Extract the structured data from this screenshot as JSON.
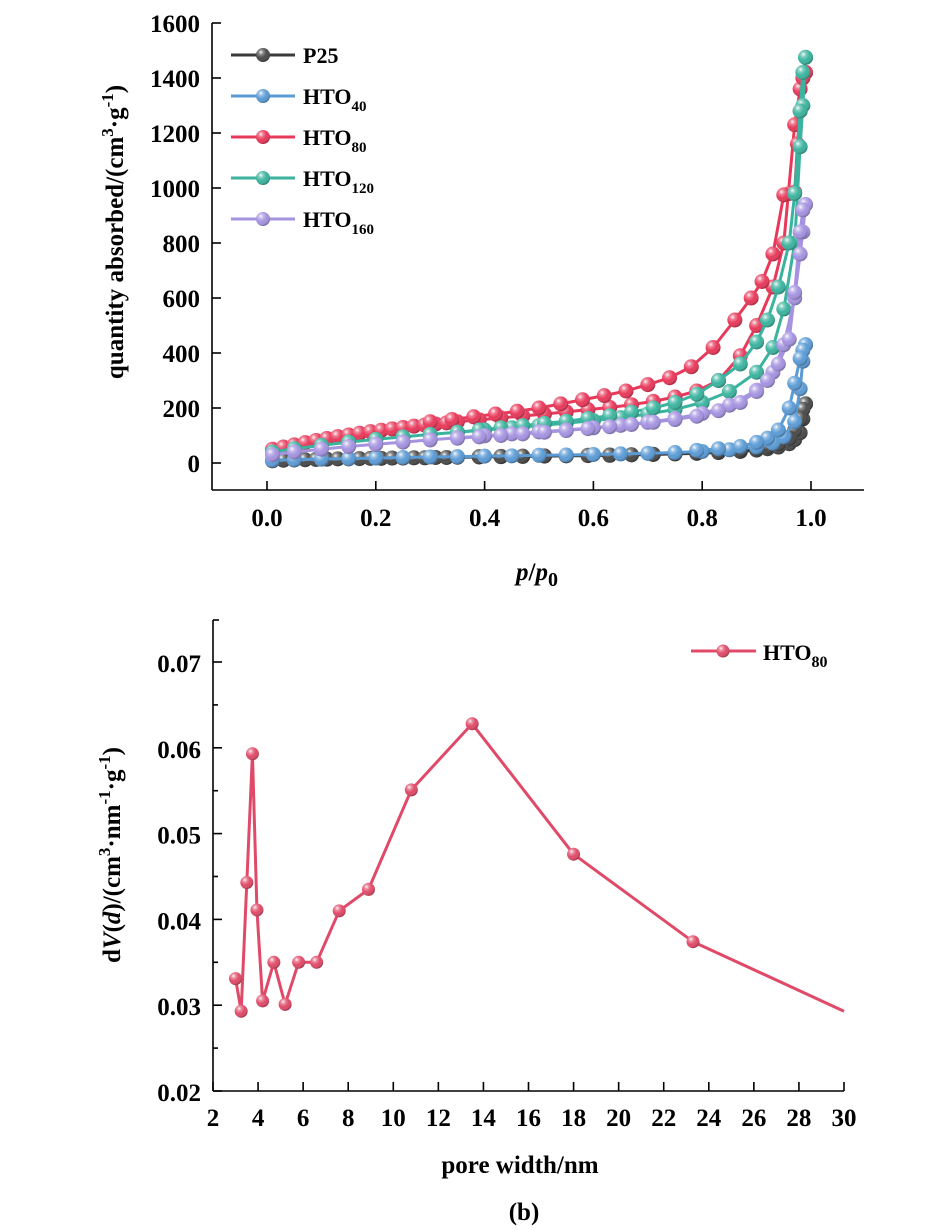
{
  "chart_data": [
    {
      "type": "line",
      "panel": "a",
      "title": "",
      "xlabel": "p/p0",
      "xlabel_parts": {
        "p": "p",
        "slash": "/",
        "p0_base": "p",
        "p0_sub": "0"
      },
      "ylabel": "quantity absorbed/(cm3·g-1)",
      "ylabel_parts": {
        "main": "quantity absorbed/(cm",
        "sup1": "3",
        "mid": "·g",
        "sup2": "-1",
        "end": ")"
      },
      "xlim": [
        -0.1,
        1.1
      ],
      "ylim": [
        -100,
        1600
      ],
      "xticks": [
        0.0,
        0.2,
        0.4,
        0.6,
        0.8,
        1.0
      ],
      "xtick_labels": [
        "0.0",
        "0.2",
        "0.4",
        "0.6",
        "0.8",
        "1.0"
      ],
      "yticks": [
        0,
        200,
        400,
        600,
        800,
        1000,
        1200,
        1400,
        1600
      ],
      "ytick_labels": [
        "0",
        "200",
        "400",
        "600",
        "800",
        "1000",
        "1200",
        "1400",
        "1600"
      ],
      "grid": false,
      "legend_position": "top-left",
      "series": [
        {
          "name": "P25",
          "legend_base": "P25",
          "legend_sub": "",
          "color": "#3a3a3a",
          "marker_color": "#4a4a4a",
          "adsorption": {
            "x": [
              0.01,
              0.03,
              0.05,
              0.07,
              0.09,
              0.11,
              0.13,
              0.15,
              0.17,
              0.19,
              0.21,
              0.23,
              0.25,
              0.27,
              0.29,
              0.31,
              0.33,
              0.35,
              0.39,
              0.43,
              0.47,
              0.51,
              0.55,
              0.59,
              0.63,
              0.67,
              0.71,
              0.75,
              0.79,
              0.83,
              0.87,
              0.9,
              0.92,
              0.94,
              0.96,
              0.97,
              0.98,
              0.985,
              0.99
            ],
            "y": [
              8,
              10,
              11,
              12,
              13,
              14,
              15,
              15,
              16,
              17,
              17,
              18,
              18,
              19,
              19,
              20,
              20,
              21,
              22,
              23,
              24,
              25,
              26,
              27,
              28,
              30,
              31,
              33,
              35,
              38,
              42,
              47,
              52,
              58,
              70,
              85,
              110,
              160,
              215
            ]
          },
          "desorption": {
            "x": [
              0.99,
              0.985,
              0.98,
              0.97,
              0.96,
              0.94,
              0.92,
              0.9,
              0.87,
              0.83,
              0.79,
              0.75,
              0.71,
              0.67,
              0.63,
              0.59,
              0.55,
              0.51,
              0.47,
              0.43,
              0.39,
              0.35
            ],
            "y": [
              215,
              195,
              160,
              120,
              90,
              70,
              60,
              54,
              48,
              42,
              38,
              35,
              32,
              30,
              29,
              28,
              27,
              26,
              25,
              24,
              23,
              22
            ]
          }
        },
        {
          "name": "HTO40",
          "legend_base": "HTO",
          "legend_sub": "40",
          "color": "#5b9bd5",
          "marker_color": "#5b9bd5",
          "adsorption": {
            "x": [
              0.01,
              0.05,
              0.1,
              0.15,
              0.2,
              0.25,
              0.3,
              0.35,
              0.4,
              0.45,
              0.5,
              0.55,
              0.6,
              0.65,
              0.7,
              0.75,
              0.8,
              0.85,
              0.9,
              0.93,
              0.95,
              0.97,
              0.98,
              0.985,
              0.99
            ],
            "y": [
              10,
              12,
              14,
              16,
              18,
              20,
              22,
              23,
              25,
              26,
              28,
              29,
              31,
              33,
              35,
              38,
              42,
              48,
              58,
              72,
              95,
              150,
              270,
              370,
              430
            ]
          },
          "desorption": {
            "x": [
              0.99,
              0.985,
              0.98,
              0.97,
              0.96,
              0.94,
              0.92,
              0.9,
              0.87,
              0.83,
              0.79
            ],
            "y": [
              430,
              410,
              380,
              290,
              200,
              120,
              90,
              75,
              60,
              52,
              46
            ]
          }
        },
        {
          "name": "HTO80",
          "legend_base": "HTO",
          "legend_sub": "80",
          "color": "#e8395a",
          "marker_color": "#e8395a",
          "adsorption": {
            "x": [
              0.01,
              0.03,
              0.05,
              0.07,
              0.09,
              0.11,
              0.13,
              0.15,
              0.17,
              0.19,
              0.21,
              0.23,
              0.25,
              0.27,
              0.29,
              0.31,
              0.33,
              0.35,
              0.39,
              0.43,
              0.47,
              0.51,
              0.55,
              0.59,
              0.63,
              0.67,
              0.71,
              0.75,
              0.79,
              0.83,
              0.87,
              0.9,
              0.93,
              0.95,
              0.97,
              0.98,
              0.99
            ],
            "y": [
              50,
              58,
              66,
              74,
              82,
              89,
              96,
              102,
              108,
              114,
              119,
              124,
              129,
              134,
              138,
              142,
              146,
              150,
              157,
              164,
              171,
              178,
              186,
              194,
              202,
              212,
              224,
              240,
              262,
              300,
              390,
              500,
              640,
              800,
              1230,
              1360,
              1420
            ]
          },
          "desorption": {
            "x": [
              0.99,
              0.985,
              0.98,
              0.975,
              0.97,
              0.96,
              0.95,
              0.93,
              0.91,
              0.89,
              0.86,
              0.82,
              0.78,
              0.74,
              0.7,
              0.66,
              0.62,
              0.58,
              0.54,
              0.5,
              0.46,
              0.42,
              0.38,
              0.34,
              0.3
            ],
            "y": [
              1420,
              1400,
              1280,
              1160,
              985,
              980,
              975,
              760,
              660,
              600,
              520,
              420,
              350,
              310,
              285,
              262,
              245,
              230,
              215,
              200,
              188,
              178,
              168,
              158,
              150
            ]
          }
        },
        {
          "name": "HTO120",
          "legend_base": "HTO",
          "legend_sub": "120",
          "color": "#3bb39e",
          "marker_color": "#3bb39e",
          "adsorption": {
            "x": [
              0.01,
              0.05,
              0.1,
              0.15,
              0.2,
              0.25,
              0.3,
              0.35,
              0.4,
              0.45,
              0.5,
              0.55,
              0.6,
              0.65,
              0.7,
              0.75,
              0.8,
              0.85,
              0.9,
              0.93,
              0.95,
              0.97,
              0.98,
              0.985,
              0.99
            ],
            "y": [
              40,
              52,
              64,
              76,
              86,
              95,
              104,
              112,
              120,
              128,
              136,
              145,
              154,
              165,
              178,
              195,
              220,
              260,
              330,
              420,
              560,
              800,
              1150,
              1300,
              1475
            ]
          },
          "desorption": {
            "x": [
              0.99,
              0.985,
              0.98,
              0.97,
              0.96,
              0.94,
              0.92,
              0.9,
              0.87,
              0.83,
              0.79,
              0.75,
              0.71,
              0.67,
              0.63,
              0.59,
              0.55,
              0.51,
              0.47,
              0.43,
              0.39,
              0.35
            ],
            "y": [
              1475,
              1420,
              1280,
              980,
              800,
              640,
              520,
              440,
              360,
              300,
              250,
              220,
              200,
              185,
              172,
              162,
              152,
              144,
              136,
              128,
              120,
              112
            ]
          }
        },
        {
          "name": "HTO160",
          "legend_base": "HTO",
          "legend_sub": "160",
          "color": "#a593e0",
          "marker_color": "#a593e0",
          "adsorption": {
            "x": [
              0.01,
              0.05,
              0.1,
              0.15,
              0.2,
              0.25,
              0.3,
              0.35,
              0.4,
              0.45,
              0.5,
              0.55,
              0.6,
              0.65,
              0.7,
              0.75,
              0.8,
              0.85,
              0.9,
              0.93,
              0.95,
              0.97,
              0.98,
              0.985,
              0.99
            ],
            "y": [
              30,
              40,
              50,
              60,
              68,
              76,
              84,
              92,
              99,
              106,
              113,
              120,
              128,
              137,
              148,
              162,
              180,
              210,
              265,
              330,
              430,
              600,
              760,
              840,
              940
            ]
          },
          "desorption": {
            "x": [
              0.99,
              0.985,
              0.98,
              0.97,
              0.96,
              0.94,
              0.92,
              0.9,
              0.87,
              0.83,
              0.79,
              0.75,
              0.71,
              0.67,
              0.63,
              0.59,
              0.55,
              0.51,
              0.47,
              0.43,
              0.39,
              0.35
            ],
            "y": [
              940,
              920,
              840,
              620,
              450,
              360,
              300,
              260,
              220,
              190,
              170,
              158,
              148,
              140,
              132,
              125,
              118,
              112,
              106,
              100,
              95,
              90
            ]
          }
        }
      ]
    },
    {
      "type": "line",
      "panel": "b",
      "title": "",
      "caption": "(b)",
      "xlabel": "pore width/nm",
      "ylabel": "dV(d)/(cm3·nm-1·g-1)",
      "ylabel_parts": {
        "d1": "d",
        "V": "V",
        "p1": "(",
        "d2": "d",
        "rest1": ")/(cm",
        "sup1": "3",
        "mid": "·nm",
        "sup2": "-1",
        "mid2": "·g",
        "sup3": "-1",
        "end": ")"
      },
      "xlim": [
        2,
        30
      ],
      "ylim": [
        0.02,
        0.075
      ],
      "xticks": [
        2,
        4,
        6,
        8,
        10,
        12,
        14,
        16,
        18,
        20,
        22,
        24,
        26,
        28,
        30
      ],
      "xtick_labels": [
        "2",
        "4",
        "6",
        "8",
        "10",
        "12",
        "14",
        "16",
        "18",
        "20",
        "22",
        "24",
        "26",
        "28",
        "30"
      ],
      "yticks": [
        0.02,
        0.03,
        0.04,
        0.05,
        0.06,
        0.07
      ],
      "ytick_labels": [
        "0.02",
        "0.03",
        "0.04",
        "0.05",
        "0.06",
        "0.07"
      ],
      "yminor_ticks": [
        0.025,
        0.035,
        0.045,
        0.055,
        0.065
      ],
      "grid": false,
      "legend_position": "top-right",
      "series": [
        {
          "name": "HTO80",
          "legend_base": "HTO",
          "legend_sub": "80",
          "color": "#e04a68",
          "x": [
            3.0,
            3.25,
            3.5,
            3.75,
            3.95,
            4.2,
            4.7,
            5.2,
            5.8,
            6.6,
            7.6,
            8.9,
            10.8,
            13.5,
            18.0,
            23.3
          ],
          "y": [
            0.0331,
            0.0293,
            0.0443,
            0.0593,
            0.0411,
            0.0305,
            0.035,
            0.0301,
            0.035,
            0.035,
            0.041,
            0.0435,
            0.0551,
            0.0628,
            0.0476,
            0.0374
          ],
          "line_end": {
            "x": 30,
            "y": 0.0293
          }
        }
      ]
    }
  ]
}
